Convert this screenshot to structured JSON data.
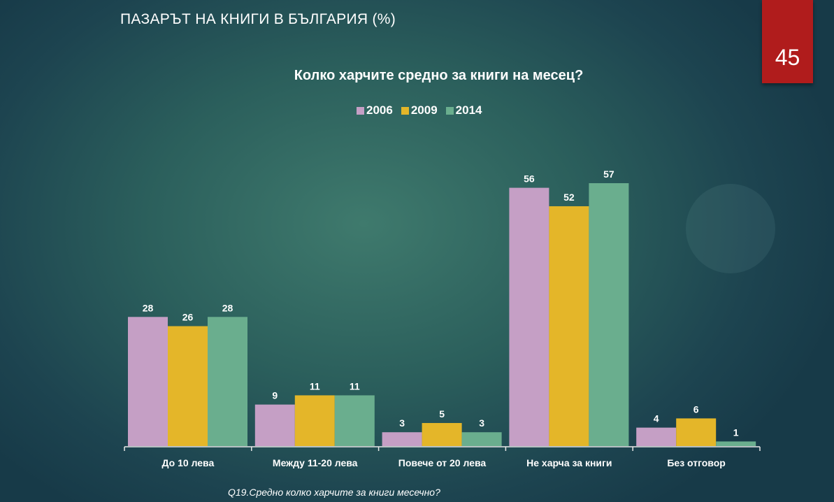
{
  "header": {
    "title": "ПАЗАРЪТ НА КНИГИ В БЪЛГАРИЯ (%)",
    "slide_number": "45"
  },
  "footnote": "Q19.Средно колко харчите за книги месечно?",
  "chart_data": {
    "type": "bar",
    "title": "Колко харчите средно за книги на месец?",
    "categories": [
      "До 10 лева",
      "Между 11-20 лева",
      "Повече от 20 лева",
      "Не харча за книги",
      "Без отговор"
    ],
    "series": [
      {
        "name": "2006",
        "color": "#c59fc5",
        "values": [
          28,
          9,
          3,
          56,
          4
        ]
      },
      {
        "name": "2009",
        "color": "#e4b629",
        "values": [
          26,
          11,
          5,
          52,
          6
        ]
      },
      {
        "name": "2014",
        "color": "#6aae8e",
        "values": [
          28,
          11,
          3,
          57,
          1
        ]
      }
    ],
    "xlabel": "",
    "ylabel": "",
    "ylim": [
      0,
      60
    ],
    "grid": false,
    "legend": "top-center"
  }
}
